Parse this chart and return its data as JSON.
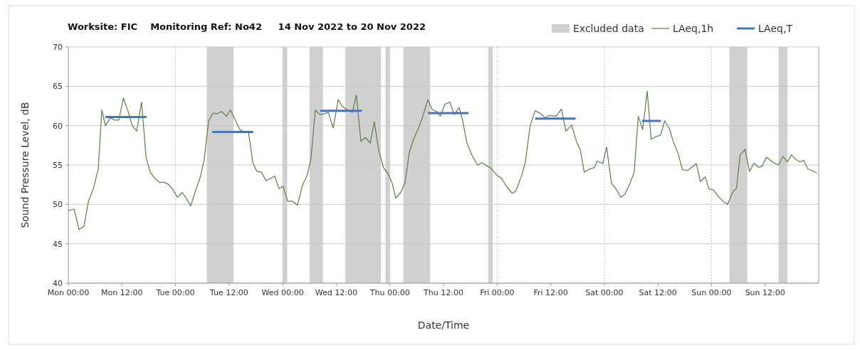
{
  "chart_data": {
    "type": "line",
    "title": "Worksite: FIC    Monitoring Ref: No42     14 Nov 2022 to 20 Nov 2022",
    "xlabel": "Date/Time",
    "ylabel": "Sound Pressure Level, dB",
    "xlim": [
      "2022-11-14T00:00",
      "2022-11-21T00:00"
    ],
    "xticks": [
      {
        "value": "2022-11-14T00:00",
        "label": "Mon 00:00"
      },
      {
        "value": "2022-11-14T12:00",
        "label": "Mon 12:00"
      },
      {
        "value": "2022-11-15T00:00",
        "label": "Tue 00:00"
      },
      {
        "value": "2022-11-15T12:00",
        "label": "Tue 12:00"
      },
      {
        "value": "2022-11-16T00:00",
        "label": "Wed 00:00"
      },
      {
        "value": "2022-11-16T12:00",
        "label": "Wed 12:00"
      },
      {
        "value": "2022-11-17T00:00",
        "label": "Thu 00:00"
      },
      {
        "value": "2022-11-17T12:00",
        "label": "Thu 12:00"
      },
      {
        "value": "2022-11-18T00:00",
        "label": "Fri 00:00"
      },
      {
        "value": "2022-11-18T12:00",
        "label": "Fri 12:00"
      },
      {
        "value": "2022-11-19T00:00",
        "label": "Sat 00:00"
      },
      {
        "value": "2022-11-19T12:00",
        "label": "Sat 12:00"
      },
      {
        "value": "2022-11-20T00:00",
        "label": "Sun 00:00"
      },
      {
        "value": "2022-11-20T12:00",
        "label": "Sun 12:00"
      }
    ],
    "ylim": [
      40,
      70
    ],
    "yticks": [
      40,
      45,
      50,
      55,
      60,
      65,
      70
    ],
    "grid": true,
    "legend": "top right",
    "bands": [
      {
        "axis": "x",
        "from": "2022-11-15T07:00",
        "to": "2022-11-15T13:00",
        "label": "Excluded data",
        "color": "#d0d0d0"
      },
      {
        "axis": "x",
        "from": "2022-11-16T00:00",
        "to": "2022-11-16T01:00",
        "color": "#d0d0d0"
      },
      {
        "axis": "x",
        "from": "2022-11-16T06:00",
        "to": "2022-11-16T09:00",
        "color": "#d0d0d0"
      },
      {
        "axis": "x",
        "from": "2022-11-16T14:00",
        "to": "2022-11-16T22:00",
        "color": "#d0d0d0"
      },
      {
        "axis": "x",
        "from": "2022-11-16T23:00",
        "to": "2022-11-17T00:00",
        "color": "#d0d0d0"
      },
      {
        "axis": "x",
        "from": "2022-11-17T03:00",
        "to": "2022-11-17T09:00",
        "color": "#d0d0d0"
      },
      {
        "axis": "x",
        "from": "2022-11-17T22:00",
        "to": "2022-11-17T23:00",
        "color": "#d0d0d0"
      },
      {
        "axis": "x",
        "from": "2022-11-20T04:00",
        "to": "2022-11-20T08:00",
        "color": "#d0d0d0"
      },
      {
        "axis": "x",
        "from": "2022-11-20T15:00",
        "to": "2022-11-20T17:00",
        "color": "#d0d0d0"
      }
    ],
    "series": [
      {
        "name": "LAeq,1h",
        "color": "#5f7a4f",
        "x": [
          "2022-11-14T00:00",
          "2022-11-14T01:18",
          "2022-11-14T02:24",
          "2022-11-14T03:30",
          "2022-11-14T04:30",
          "2022-11-14T05:36",
          "2022-11-14T06:42",
          "2022-11-14T07:30",
          "2022-11-14T08:18",
          "2022-11-14T09:24",
          "2022-11-14T10:24",
          "2022-11-14T11:18",
          "2022-11-14T12:18",
          "2022-11-14T13:24",
          "2022-11-14T14:18",
          "2022-11-14T15:18",
          "2022-11-14T16:24",
          "2022-11-14T17:24",
          "2022-11-14T18:18",
          "2022-11-14T19:24",
          "2022-11-14T20:24",
          "2022-11-14T21:30",
          "2022-11-14T22:30",
          "2022-11-14T23:24",
          "2022-11-15T00:24",
          "2022-11-15T01:30",
          "2022-11-15T02:30",
          "2022-11-15T03:24",
          "2022-11-15T04:30",
          "2022-11-15T05:30",
          "2022-11-15T06:24",
          "2022-11-15T07:24",
          "2022-11-15T08:24",
          "2022-11-15T09:18",
          "2022-11-15T10:18",
          "2022-11-15T11:24",
          "2022-11-15T12:18",
          "2022-11-15T13:18",
          "2022-11-15T14:24",
          "2022-11-15T15:24",
          "2022-11-15T16:18",
          "2022-11-15T17:18",
          "2022-11-15T18:12",
          "2022-11-15T19:12",
          "2022-11-15T20:18",
          "2022-11-15T21:18",
          "2022-11-15T22:12",
          "2022-11-15T23:12",
          "2022-11-16T00:06",
          "2022-11-16T01:06",
          "2022-11-16T02:12",
          "2022-11-16T03:18",
          "2022-11-16T04:24",
          "2022-11-16T05:24",
          "2022-11-16T06:18",
          "2022-11-16T07:18",
          "2022-11-16T08:18",
          "2022-11-16T09:12",
          "2022-11-16T10:12",
          "2022-11-16T11:18",
          "2022-11-16T12:24",
          "2022-11-16T13:24",
          "2022-11-16T14:30",
          "2022-11-16T15:36",
          "2022-11-16T16:30",
          "2022-11-16T17:30",
          "2022-11-16T18:30",
          "2022-11-16T19:36",
          "2022-11-16T20:30",
          "2022-11-16T21:30",
          "2022-11-16T22:36",
          "2022-11-16T23:36",
          "2022-11-17T00:30",
          "2022-11-17T01:18",
          "2022-11-17T02:24",
          "2022-11-17T03:24",
          "2022-11-17T04:18",
          "2022-11-17T05:18",
          "2022-11-17T06:12",
          "2022-11-17T07:12",
          "2022-11-17T08:30",
          "2022-11-17T09:24",
          "2022-11-17T10:24",
          "2022-11-17T11:18",
          "2022-11-17T12:18",
          "2022-11-17T13:24",
          "2022-11-17T14:24",
          "2022-11-17T15:30",
          "2022-11-17T16:18",
          "2022-11-17T17:12",
          "2022-11-17T18:24",
          "2022-11-17T19:36",
          "2022-11-17T20:36",
          "2022-11-17T21:42",
          "2022-11-17T22:42",
          "2022-11-17T23:54",
          "2022-11-18T01:00",
          "2022-11-18T02:12",
          "2022-11-18T03:24",
          "2022-11-18T04:12",
          "2022-11-18T05:30",
          "2022-11-18T06:18",
          "2022-11-18T07:24",
          "2022-11-18T08:30",
          "2022-11-18T09:48",
          "2022-11-18T10:48",
          "2022-11-18T11:42",
          "2022-11-18T13:12",
          "2022-11-18T14:24",
          "2022-11-18T15:24",
          "2022-11-18T16:42",
          "2022-11-18T17:48",
          "2022-11-18T18:36",
          "2022-11-18T19:30",
          "2022-11-18T20:42",
          "2022-11-18T21:48",
          "2022-11-18T22:24",
          "2022-11-18T23:42",
          "2022-11-19T00:30",
          "2022-11-19T01:36",
          "2022-11-19T02:42",
          "2022-11-19T03:42",
          "2022-11-19T04:36",
          "2022-11-19T05:42",
          "2022-11-19T06:42",
          "2022-11-19T07:36",
          "2022-11-19T08:36",
          "2022-11-19T09:36",
          "2022-11-19T10:30",
          "2022-11-19T11:30",
          "2022-11-19T12:36",
          "2022-11-19T13:30",
          "2022-11-19T14:30",
          "2022-11-19T15:30",
          "2022-11-19T16:36",
          "2022-11-19T17:30",
          "2022-11-19T18:36",
          "2022-11-19T19:48",
          "2022-11-19T20:36",
          "2022-11-19T21:30",
          "2022-11-19T22:36",
          "2022-11-19T23:24",
          "2022-11-20T00:30",
          "2022-11-20T01:42",
          "2022-11-20T02:36",
          "2022-11-20T03:36",
          "2022-11-20T04:48",
          "2022-11-20T05:36",
          "2022-11-20T06:24",
          "2022-11-20T07:30",
          "2022-11-20T08:30",
          "2022-11-20T09:30",
          "2022-11-20T10:36",
          "2022-11-20T11:24",
          "2022-11-20T12:18",
          "2022-11-20T13:36",
          "2022-11-20T15:00",
          "2022-11-20T16:00",
          "2022-11-20T17:00",
          "2022-11-20T17:54",
          "2022-11-20T18:54",
          "2022-11-20T19:48",
          "2022-11-20T20:36",
          "2022-11-20T21:36",
          "2022-11-20T23:36"
        ],
        "values": [
          49.2,
          49.4,
          46.8,
          47.2,
          50.4,
          52,
          54.5,
          62,
          60,
          61,
          60.7,
          60.7,
          63.5,
          61.8,
          60,
          59.3,
          63,
          56,
          54.1,
          53.3,
          52.8,
          52.8,
          52.5,
          51.9,
          50.9,
          51.5,
          50.7,
          49.8,
          51.8,
          53.4,
          55.6,
          60.6,
          61.6,
          61.5,
          61.8,
          61.2,
          62,
          60.8,
          59.5,
          59.2,
          59.3,
          55.3,
          54.2,
          54.1,
          53,
          53.3,
          53.6,
          52,
          52.3,
          50.4,
          50.4,
          49.9,
          52.4,
          53.6,
          55.7,
          62,
          61.4,
          61.5,
          61.7,
          59.7,
          63.3,
          62.4,
          62,
          61.7,
          63.9,
          58,
          58.5,
          57.8,
          60.5,
          56.8,
          54.6,
          53.9,
          52.7,
          50.8,
          51.5,
          52.8,
          56.5,
          58.3,
          59.4,
          60.9,
          63.3,
          62.1,
          61.8,
          61.2,
          62.7,
          63,
          61.4,
          62.3,
          60.6,
          57.9,
          56.2,
          55,
          55.3,
          54.9,
          54.6,
          53.7,
          53.3,
          52.2,
          51.4,
          51.7,
          53.7,
          55.3,
          60,
          61.9,
          61.5,
          61,
          61.3,
          61.2,
          62.1,
          59.3,
          60.1,
          57.9,
          57,
          54.1,
          54.5,
          54.7,
          55.5,
          55.2,
          57.3,
          52.7,
          51.9,
          50.9,
          51.3,
          52.6,
          54.1,
          61.2,
          59.5,
          64.4,
          58.3,
          58.6,
          58.8,
          60.6,
          59.7,
          57.9,
          56.3,
          54.4,
          54.3,
          54.8,
          55.2,
          52.9,
          53.5,
          52,
          51.8,
          50.9,
          50.4,
          50,
          51.6,
          52.1,
          56.3,
          57,
          54.2,
          55.2,
          54.7,
          54.9,
          56,
          55.4,
          55,
          56.1,
          55.4,
          56.3,
          55.7,
          55.4,
          55.6,
          54.5,
          54
        ]
      },
      {
        "name": "LAeq,T",
        "color": "#4472c4",
        "x": [
          "2022-11-14T08:18",
          "2022-11-14T17:30",
          "2022-11-15T00:00",
          "2022-11-15T08:12",
          "2022-11-15T17:24",
          "2022-11-16T00:00",
          "2022-11-16T08:24",
          "2022-11-16T17:42",
          "2022-11-17T00:00",
          "2022-11-17T08:30",
          "2022-11-17T17:36",
          "2022-11-18T00:00",
          "2022-11-18T08:30",
          "2022-11-18T17:36",
          "2022-11-19T00:00",
          "2022-11-19T08:24",
          "2022-11-19T12:42"
        ],
        "values": [
          61.1,
          61.1,
          null,
          59.2,
          59.2,
          null,
          61.9,
          61.9,
          null,
          61.6,
          61.6,
          null,
          60.9,
          60.9,
          null,
          60.6,
          60.6
        ]
      }
    ]
  }
}
